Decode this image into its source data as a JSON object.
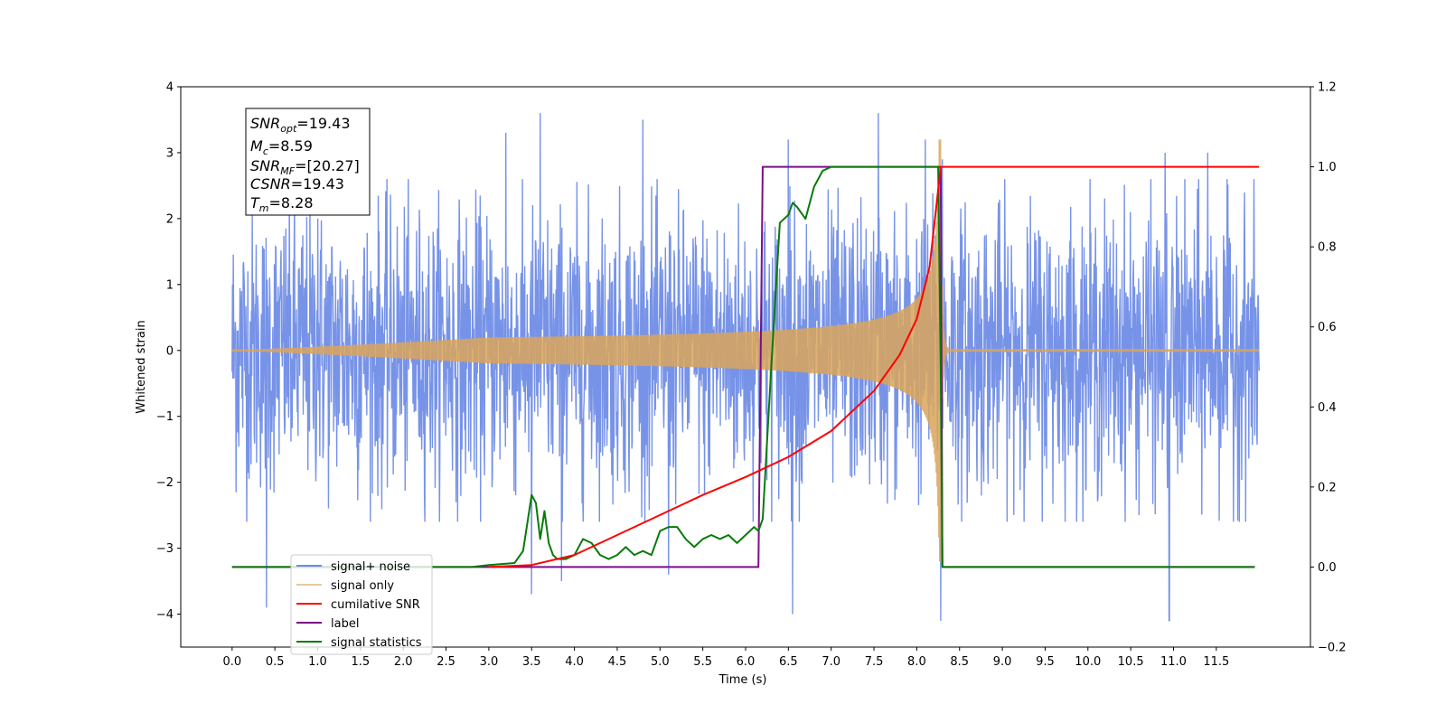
{
  "chart_data": {
    "type": "line",
    "xlabel": "Time (s)",
    "ylabel": "Whitened strain",
    "xlim": [
      -0.6,
      12.6
    ],
    "ylim": [
      -4.5,
      4.0
    ],
    "y2lim": [
      -0.2,
      1.2
    ],
    "x_ticks": [
      "0.0",
      "0.5",
      "1.0",
      "1.5",
      "2.0",
      "2.5",
      "3.0",
      "3.5",
      "4.0",
      "4.5",
      "5.0",
      "5.5",
      "6.0",
      "6.5",
      "7.0",
      "7.5",
      "8.0",
      "8.5",
      "9.0",
      "9.5",
      "10.0",
      "10.5",
      "11.0",
      "11.5"
    ],
    "y_ticks": [
      "4",
      "3",
      "2",
      "1",
      "0",
      "−1",
      "−2",
      "−3",
      "−4"
    ],
    "y2_ticks": [
      "1.2",
      "1.0",
      "0.8",
      "0.6",
      "0.4",
      "0.2",
      "0.0",
      "−0.2"
    ],
    "annotation": {
      "lines": [
        {
          "main": "SNR",
          "sub": "opt",
          "rest": "=19.43"
        },
        {
          "main": "M",
          "sub": "c",
          "rest": "=8.59"
        },
        {
          "main": "SNR",
          "sub": "MF",
          "rest": "=[20.27]"
        },
        {
          "main": "CSNR",
          "sub": "",
          "rest": "=19.43"
        },
        {
          "main": "T",
          "sub": "m",
          "rest": "=8.28"
        }
      ]
    },
    "legend": {
      "placement": "lower-left",
      "entries": [
        "signal+ noise",
        "signal only",
        "cumilative SNR",
        "label",
        "signal statistics"
      ]
    },
    "series": [
      {
        "name": "signal+ noise",
        "axis": "left",
        "color": "#6b8ae6",
        "kind": "noise",
        "x_range": [
          0.0,
          12.0
        ],
        "typical_amplitude": 1.9,
        "peaks": [
          [
            1.0,
            2.0
          ],
          [
            3.2,
            3.3
          ],
          [
            3.6,
            3.6
          ],
          [
            4.8,
            3.5
          ],
          [
            6.5,
            3.2
          ],
          [
            7.55,
            3.6
          ],
          [
            8.1,
            3.2
          ],
          [
            8.3,
            2.9
          ],
          [
            10.9,
            3.0
          ],
          [
            11.4,
            3.0
          ]
        ],
        "troughs": [
          [
            0.4,
            -3.9
          ],
          [
            3.5,
            -3.7
          ],
          [
            3.85,
            -3.5
          ],
          [
            5.1,
            -3.4
          ],
          [
            6.55,
            -4.0
          ],
          [
            8.28,
            -4.1
          ],
          [
            10.95,
            -4.1
          ]
        ]
      },
      {
        "name": "signal only",
        "axis": "left",
        "color": "#d9a45a",
        "kind": "chirp",
        "x_range": [
          0.0,
          12.0
        ],
        "start_amplitude": 0.05,
        "peak_amplitude": 3.2,
        "merger_time": 8.28
      },
      {
        "name": "cumilative SNR",
        "axis": "right",
        "color": "#ff0000",
        "x": [
          3.0,
          3.5,
          4.0,
          4.5,
          5.0,
          5.5,
          6.0,
          6.5,
          7.0,
          7.5,
          7.8,
          8.0,
          8.15,
          8.28,
          9.0,
          10.0,
          11.0,
          11.5,
          12.0
        ],
        "values": [
          0.0,
          0.005,
          0.03,
          0.08,
          0.13,
          0.18,
          0.225,
          0.275,
          0.34,
          0.44,
          0.53,
          0.62,
          0.75,
          1.0,
          1.0,
          1.0,
          1.0,
          1.0,
          1.0
        ]
      },
      {
        "name": "label",
        "axis": "right",
        "color": "#7b0f85",
        "x": [
          0.0,
          6.15,
          6.2,
          8.28,
          8.3,
          11.95
        ],
        "values": [
          0.0,
          0.0,
          1.0,
          1.0,
          0.0,
          0.0
        ]
      },
      {
        "name": "signal statistics",
        "axis": "right",
        "color": "#0a7a0a",
        "x": [
          0.0,
          2.8,
          3.0,
          3.3,
          3.4,
          3.5,
          3.55,
          3.6,
          3.65,
          3.7,
          3.75,
          3.8,
          3.9,
          4.0,
          4.1,
          4.2,
          4.3,
          4.4,
          4.5,
          4.6,
          4.7,
          4.8,
          4.9,
          5.0,
          5.1,
          5.2,
          5.3,
          5.4,
          5.5,
          5.6,
          5.7,
          5.8,
          5.9,
          6.0,
          6.1,
          6.15,
          6.2,
          6.3,
          6.4,
          6.5,
          6.55,
          6.6,
          6.7,
          6.8,
          6.9,
          7.0,
          7.2,
          7.5,
          8.0,
          8.25,
          8.28,
          8.3,
          11.95
        ],
        "values": [
          0.0,
          0.0,
          0.005,
          0.01,
          0.04,
          0.18,
          0.16,
          0.07,
          0.14,
          0.06,
          0.03,
          0.02,
          0.02,
          0.03,
          0.07,
          0.06,
          0.03,
          0.02,
          0.03,
          0.05,
          0.03,
          0.04,
          0.03,
          0.09,
          0.1,
          0.1,
          0.07,
          0.05,
          0.07,
          0.08,
          0.07,
          0.08,
          0.06,
          0.08,
          0.1,
          0.09,
          0.12,
          0.5,
          0.86,
          0.88,
          0.91,
          0.9,
          0.87,
          0.95,
          0.99,
          1.0,
          1.0,
          1.0,
          1.0,
          1.0,
          0.5,
          0.0,
          0.0
        ]
      }
    ]
  }
}
